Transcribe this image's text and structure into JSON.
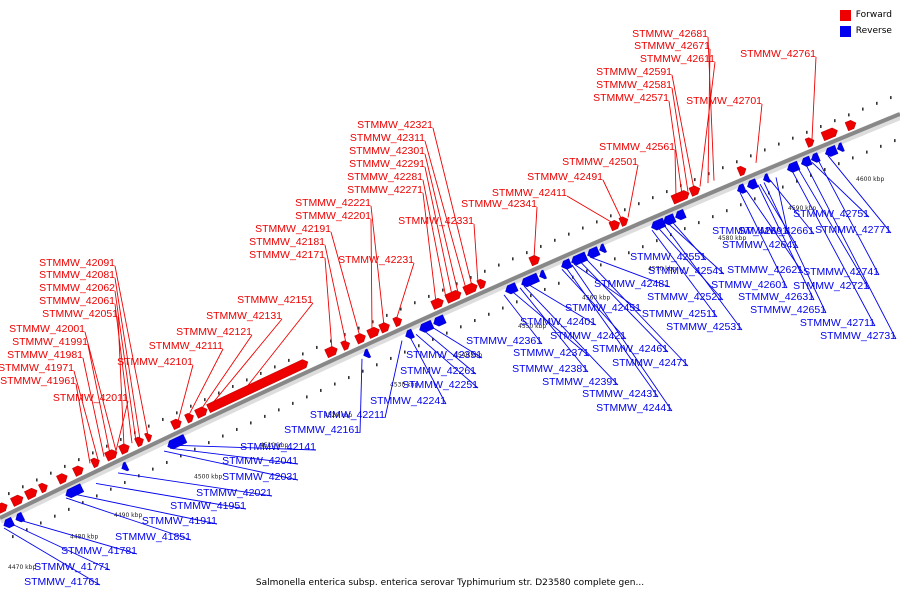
{
  "caption": "Salmonella enterica subsp. enterica serovar Typhimurium str. D23580 complete gen...",
  "legend": [
    {
      "label": "Forward",
      "color": "#ee0000"
    },
    {
      "label": "Reverse",
      "color": "#0000ee"
    }
  ],
  "colors": {
    "forward": "#ee0000",
    "reverse": "#0000ee",
    "backbone": "#888888"
  },
  "ticks": [
    "4470 kbp",
    "4480 kbp",
    "4490 kbp",
    "4500 kbp",
    "4510 kbp",
    "4520 kbp",
    "4530 kbp",
    "4540 kbp",
    "4550 kbp",
    "4560 kbp",
    "4570 kbp",
    "4580 kbp",
    "4590 kbp",
    "4600 kbp"
  ],
  "forward_labels": [
    "STMMW_42011",
    "STMMW_41961",
    "STMMW_41971",
    "STMMW_41981",
    "STMMW_41991",
    "STMMW_42001",
    "STMMW_42051",
    "STMMW_42061",
    "STMMW_42062",
    "STMMW_42081",
    "STMMW_42091",
    "STMMW_42101",
    "STMMW_42111",
    "STMMW_42121",
    "STMMW_42131",
    "STMMW_42151",
    "STMMW_42171",
    "STMMW_42181",
    "STMMW_42191",
    "STMMW_42201",
    "STMMW_42221",
    "STMMW_42231",
    "STMMW_42271",
    "STMMW_42281",
    "STMMW_42291",
    "STMMW_42301",
    "STMMW_42311",
    "STMMW_42321",
    "STMMW_42331",
    "STMMW_42341",
    "STMMW_42411",
    "STMMW_42491",
    "STMMW_42501",
    "STMMW_42561",
    "STMMW_42571",
    "STMMW_42581",
    "STMMW_42591",
    "STMMW_42611",
    "STMMW_42671",
    "STMMW_42681",
    "STMMW_42701",
    "STMMW_42761"
  ],
  "reverse_labels": [
    "STMMW_41761",
    "STMMW_41771",
    "STMMW_41781",
    "STMMW_41851",
    "STMMW_41911",
    "STMMW_41951",
    "STMMW_42021",
    "STMMW_42031",
    "STMMW_42041",
    "STMMW_42141",
    "STMMW_42161",
    "STMMW_42211",
    "STMMW_42241",
    "STMMW_42251",
    "STMMW_42261",
    "STMMW_42351",
    "STMMW_42361",
    "STMMW_42371",
    "STMMW_42381",
    "STMMW_42391",
    "STMMW_42401",
    "STMMW_42421",
    "STMMW_42431",
    "STMMW_42441",
    "STMMW_42451",
    "STMMW_42461",
    "STMMW_42471",
    "STMMW_42481",
    "STMMW_42511",
    "STMMW_42521",
    "STMMW_42531",
    "STMMW_42541",
    "STMMW_42551",
    "STMMW_42601",
    "STMMW_42621",
    "STMMW_42631",
    "STMMW_42641",
    "STMMW_42651",
    "STMMW_42661",
    "STMMW_42691",
    "STMMW_42711",
    "STMMW_42721",
    "STMMW_42731",
    "STMMW_42741",
    "STMMW_42751",
    "STMMW_42771"
  ]
}
